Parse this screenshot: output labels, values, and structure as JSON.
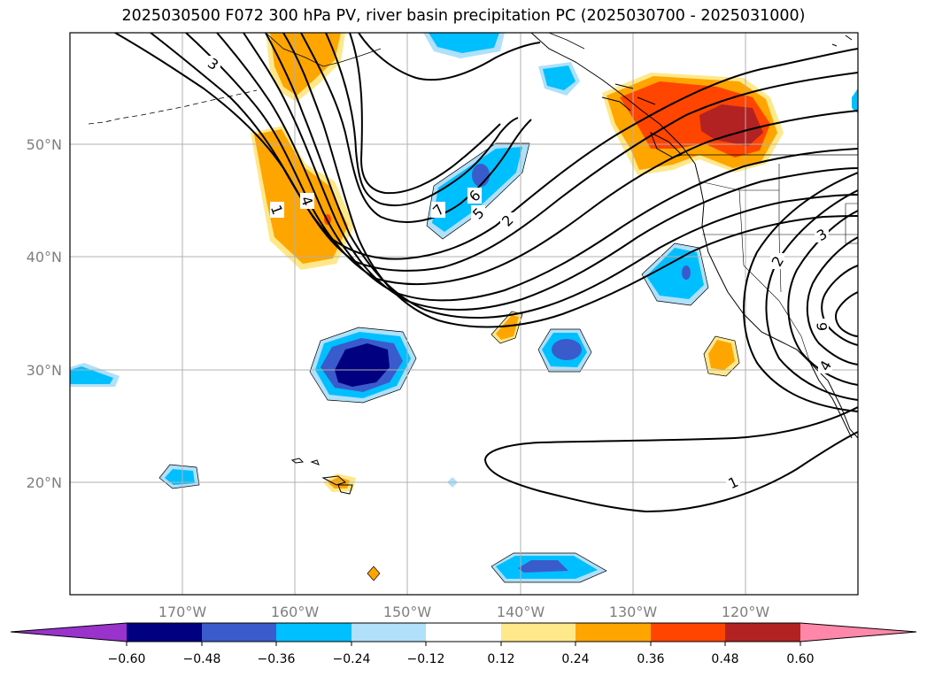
{
  "title": "2025030500 F072 300 hPa PV, river basin precipitation PC (2025030700 - 2025031000)",
  "map": {
    "lon_labels": [
      "170°W",
      "160°W",
      "150°W",
      "140°W",
      "130°W",
      "120°W"
    ],
    "lat_labels": [
      "50°N",
      "40°N",
      "30°N",
      "20°N"
    ]
  },
  "pv_contour_labels": [
    "1",
    "2",
    "3",
    "4",
    "5",
    "6",
    "7"
  ],
  "colorbar": {
    "ticks": [
      "−0.60",
      "−0.48",
      "−0.36",
      "−0.24",
      "−0.12",
      "0.12",
      "0.24",
      "0.36",
      "0.48",
      "0.60"
    ],
    "colors": {
      "under": "#9933cc",
      "neg_060_048": "#000080",
      "neg_048_036": "#3a5bcc",
      "neg_036_024": "#00bfff",
      "neg_024_012": "#b0e0fa",
      "neutral": "#ffffff",
      "pos_012_024": "#ffe88a",
      "pos_024_036": "#ffa500",
      "pos_036_048": "#ff4500",
      "pos_048_060": "#b22222",
      "over": "#ff88aa"
    }
  }
}
